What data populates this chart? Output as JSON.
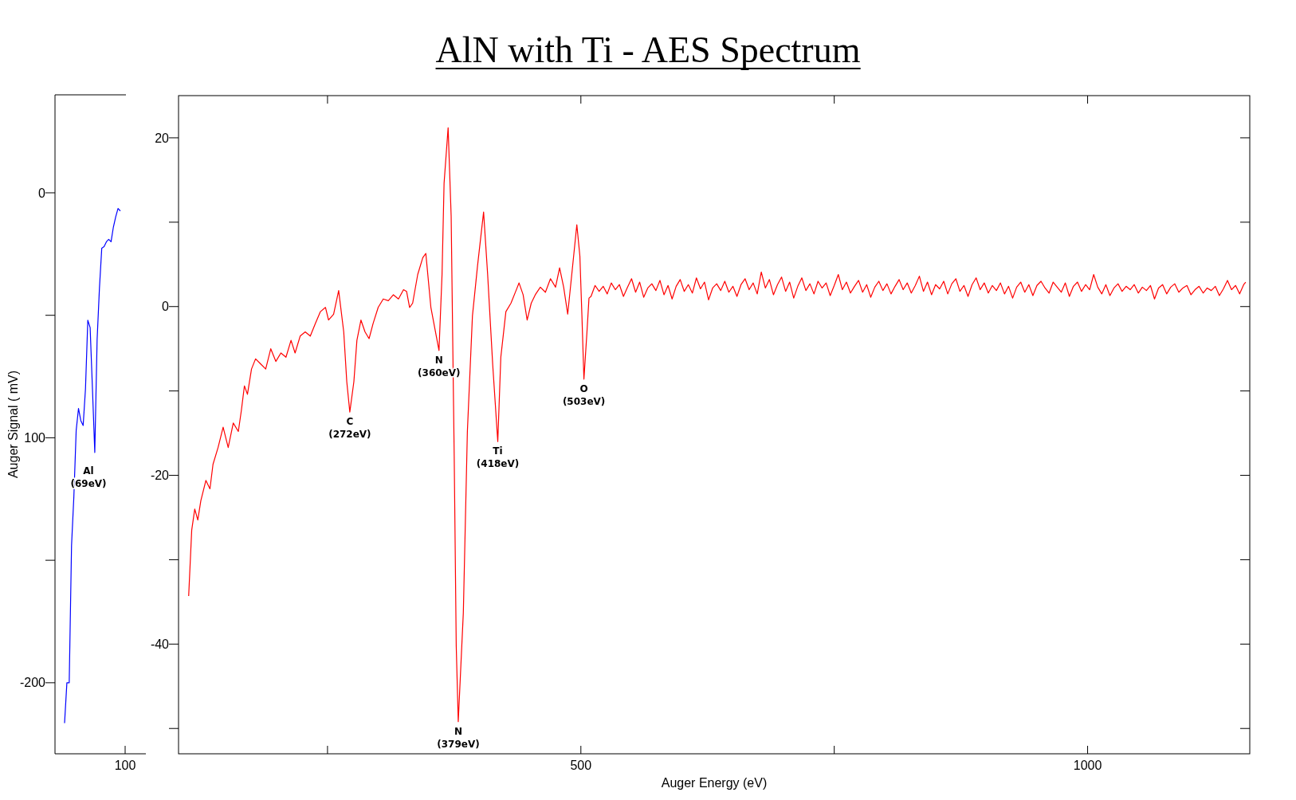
{
  "chart_data": [
    {
      "type": "line",
      "ylabel": "Auger Signal ( mV)",
      "categories": [
        null,
        null,
        null,
        null,
        null,
        null,
        null,
        null,
        null,
        null,
        null,
        null,
        null,
        null,
        null,
        null,
        null,
        null,
        null,
        null,
        null,
        null,
        null,
        null,
        null
      ],
      "ylim": [
        -229,
        40
      ],
      "yticks": [
        0,
        {
          "value": -50,
          "label": null
        },
        {
          "value": -100,
          "label": "100"
        },
        {
          "value": -150,
          "label": null
        },
        -200
      ],
      "annotations": [
        "Al\n(69eV)",
        "100"
      ],
      "series": [
        {
          "color": "#0000ff",
          "values": [
            -216.5,
            -200,
            -200,
            -144,
            -124,
            -97,
            -88,
            -93,
            -95,
            -80,
            -52,
            -55,
            -80,
            -106,
            -60,
            -39,
            -22.6,
            -22,
            -20,
            -19,
            -20,
            -14,
            -9.8,
            -6.4,
            -7.4
          ]
        }
      ]
    },
    {
      "type": "line",
      "title": "AlN with Ti - AES Spectrum",
      "xlabel": "Auger Energy (eV)",
      "xlim": [
        103,
        1160
      ],
      "xticks": [
        {
          "value": 250,
          "label": null
        },
        500,
        {
          "value": 750,
          "label": null
        },
        1000
      ],
      "ylim": [
        -53,
        25
      ],
      "yticks": [
        20,
        {
          "value": 10,
          "label": null
        },
        0,
        {
          "value": -10,
          "label": null
        },
        -20,
        {
          "value": -30,
          "label": null
        },
        -40,
        {
          "value": -50,
          "label": null
        }
      ],
      "annotations": [
        {
          "text": "C\n(272eV)",
          "x": 272,
          "y": -12.5
        },
        {
          "text": "N\n(360eV)",
          "x": 360,
          "y": -5.2
        },
        {
          "text": "N\n(379eV)",
          "x": 379,
          "y": -49.2
        },
        {
          "text": "Ti\n(418eV)",
          "x": 418,
          "y": -16
        },
        {
          "text": "O\n(503eV)",
          "x": 503,
          "y": -8.6
        }
      ],
      "series": [
        {
          "color": "#ff0000",
          "x": [
            113,
            116,
            119,
            122,
            125,
            130,
            134,
            137,
            142,
            147,
            152,
            157,
            162,
            165,
            168,
            171,
            175,
            179,
            184,
            189,
            194,
            199,
            204,
            209,
            214,
            218,
            223,
            228,
            233,
            238,
            243,
            248,
            251,
            256,
            261,
            266,
            269,
            272,
            276,
            279,
            283,
            287,
            291,
            295,
            300,
            305,
            310,
            315,
            320,
            325,
            328,
            331,
            334,
            339,
            344,
            347,
            352,
            360,
            363,
            365,
            369,
            372,
            375,
            377,
            379,
            384,
            388,
            393,
            398,
            404,
            408,
            413,
            418,
            421,
            426,
            431,
            436,
            439,
            443,
            447,
            451,
            455,
            460,
            465,
            470,
            475,
            479,
            483,
            487,
            491,
            496,
            499,
            501,
            503,
            506,
            508,
            510,
            514,
            518,
            522,
            526,
            530,
            534,
            538,
            542,
            546,
            550,
            554,
            558,
            562,
            566,
            570,
            574,
            578,
            582,
            586,
            590,
            594,
            598,
            602,
            606,
            610,
            614,
            618,
            622,
            626,
            630,
            634,
            638,
            642,
            646,
            650,
            654,
            658,
            662,
            666,
            670,
            674,
            678,
            682,
            686,
            690,
            694,
            698,
            702,
            706,
            710,
            714,
            718,
            722,
            726,
            730,
            734,
            738,
            742,
            746,
            750,
            754,
            758,
            762,
            766,
            770,
            774,
            778,
            782,
            786,
            790,
            794,
            798,
            802,
            806,
            810,
            814,
            818,
            822,
            826,
            830,
            834,
            838,
            842,
            846,
            850,
            854,
            858,
            862,
            866,
            870,
            874,
            878,
            882,
            886,
            890,
            894,
            898,
            902,
            906,
            910,
            914,
            918,
            922,
            926,
            930,
            934,
            938,
            942,
            946,
            950,
            954,
            958,
            962,
            966,
            970,
            974,
            978,
            982,
            986,
            990,
            994,
            998,
            1002,
            1006,
            1010,
            1014,
            1018,
            1022,
            1026,
            1030,
            1034,
            1038,
            1042,
            1046,
            1050,
            1054,
            1058,
            1062,
            1066,
            1070,
            1074,
            1078,
            1082,
            1086,
            1090,
            1094,
            1098,
            1102,
            1106,
            1110,
            1114,
            1118,
            1122,
            1126,
            1130,
            1134,
            1138,
            1142,
            1146,
            1150,
            1154,
            1156
          ],
          "values": [
            -34.3,
            -26.5,
            -24,
            -25.3,
            -23,
            -20.6,
            -21.6,
            -18.7,
            -16.7,
            -14.3,
            -16.7,
            -13.8,
            -14.8,
            -12.3,
            -9.4,
            -10.4,
            -7.4,
            -6.2,
            -6.8,
            -7.4,
            -5,
            -6.5,
            -5.5,
            -6,
            -4,
            -5.5,
            -3.5,
            -3,
            -3.5,
            -2,
            -0.6,
            -0.1,
            -1.6,
            -0.9,
            1.9,
            -3,
            -8.9,
            -12.5,
            -8.9,
            -4,
            -1.6,
            -3,
            -3.8,
            -2,
            -0.1,
            0.9,
            0.7,
            1.4,
            0.9,
            2,
            1.8,
            -0.1,
            0.4,
            3.8,
            5.8,
            6.3,
            -0.1,
            -5.2,
            3.8,
            14.6,
            21.2,
            10.7,
            -17.7,
            -40.2,
            -49.2,
            -36.3,
            -14.8,
            -1.1,
            4.8,
            11.2,
            3.8,
            -6.9,
            -16,
            -6,
            -0.6,
            0.4,
            1.9,
            2.8,
            1.4,
            -1.6,
            0.4,
            1.4,
            2.3,
            1.7,
            3.3,
            2.3,
            4.6,
            2.3,
            -0.9,
            3.8,
            9.7,
            6,
            -1,
            -8.6,
            -3,
            1,
            1.2,
            2.5,
            1.8,
            2.4,
            1.5,
            2.8,
            2.0,
            2.6,
            1.2,
            2.3,
            3.3,
            1.7,
            2.9,
            1.1,
            2.2,
            2.7,
            1.9,
            3.1,
            1.4,
            2.5,
            0.9,
            2.4,
            3.2,
            1.8,
            2.6,
            1.6,
            3.4,
            2.1,
            2.9,
            0.8,
            2.2,
            2.7,
            1.9,
            3.0,
            1.7,
            2.4,
            1.2,
            2.6,
            3.3,
            2.0,
            2.8,
            1.5,
            4.1,
            2.2,
            3.2,
            1.4,
            2.6,
            3.5,
            1.8,
            2.9,
            1.0,
            2.4,
            3.4,
            1.9,
            2.7,
            1.5,
            3.0,
            2.2,
            2.8,
            1.3,
            2.5,
            3.8,
            2.0,
            2.9,
            1.6,
            2.4,
            3.1,
            1.7,
            2.6,
            1.1,
            2.3,
            3.0,
            1.9,
            2.7,
            1.5,
            2.4,
            3.2,
            2.0,
            2.8,
            1.6,
            2.5,
            3.6,
            1.8,
            2.9,
            1.4,
            2.6,
            2.1,
            3.0,
            1.5,
            2.7,
            3.3,
            1.8,
            2.5,
            1.2,
            2.6,
            3.4,
            2.0,
            2.8,
            1.6,
            2.5,
            1.9,
            2.8,
            1.5,
            2.4,
            1.0,
            2.3,
            2.9,
            1.7,
            2.6,
            1.3,
            2.5,
            3.0,
            2.2,
            1.6,
            2.9,
            2.3,
            1.7,
            2.8,
            1.2,
            2.4,
            2.9,
            1.8,
            2.6,
            2.0,
            3.8,
            2.3,
            1.5,
            2.6,
            1.3,
            2.2,
            2.7,
            1.8,
            2.4,
            2.0,
            2.6,
            1.6,
            2.3,
            1.9,
            2.5,
            0.9,
            2.2,
            2.6,
            1.5,
            2.3,
            2.7,
            1.7,
            2.2,
            2.5,
            1.4,
            2.0,
            2.4,
            1.6,
            2.2,
            1.9,
            2.4,
            1.3,
            2.1,
            3.1,
            2.0,
            2.5,
            1.5,
            2.6,
            2.9
          ]
        }
      ]
    }
  ]
}
